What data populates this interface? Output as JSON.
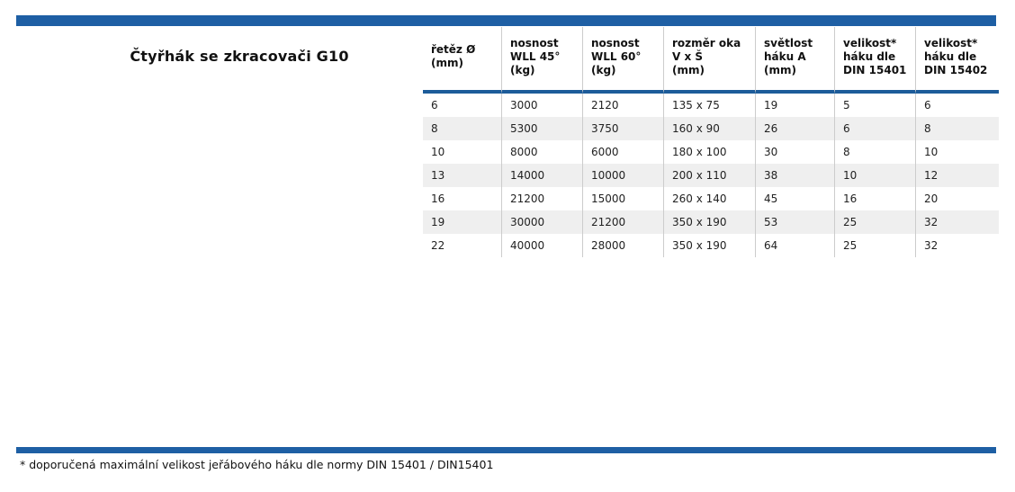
{
  "page": {
    "title": "Čtyřhák se zkracovači G10",
    "footnote": "* doporučená maximální velikost jeřábového háku dle normy DIN 15401 / DIN15401"
  },
  "colors": {
    "accent_bar": "#1e5fa4",
    "header_rule": "#1d5c9a",
    "row_alt": "#efefef",
    "divider": "#cccccc"
  },
  "table": {
    "columns": [
      {
        "key": "chain-diameter",
        "lines": [
          "řetěz Ø",
          "(mm)"
        ],
        "width": 88
      },
      {
        "key": "wll-45",
        "lines": [
          "nosnost",
          "WLL 45°",
          "(kg)"
        ],
        "width": 90
      },
      {
        "key": "wll-60",
        "lines": [
          "nosnost",
          "WLL 60°",
          "(kg)"
        ],
        "width": 90
      },
      {
        "key": "eye-size",
        "lines": [
          "rozměr oka",
          "V x Š",
          "(mm)"
        ],
        "width": 102
      },
      {
        "key": "hook-clearance",
        "lines": [
          "světlost",
          "háku A",
          "(mm)"
        ],
        "width": 88
      },
      {
        "key": "hook-size-din-15401",
        "lines": [
          "velikost*",
          "háku dle",
          "DIN 15401"
        ],
        "width": 90
      },
      {
        "key": "hook-size-din-15402",
        "lines": [
          "velikost*",
          "háku dle",
          "DIN 15402"
        ],
        "width": 92
      }
    ],
    "rows": [
      [
        "6",
        "3000",
        "2120",
        "135 x 75",
        "19",
        "5",
        "6"
      ],
      [
        "8",
        "5300",
        "3750",
        "160 x 90",
        "26",
        "6",
        "8"
      ],
      [
        "10",
        "8000",
        "6000",
        "180 x 100",
        "30",
        "8",
        "10"
      ],
      [
        "13",
        "14000",
        "10000",
        "200 x 110",
        "38",
        "10",
        "12"
      ],
      [
        "16",
        "21200",
        "15000",
        "260 x 140",
        "45",
        "16",
        "20"
      ],
      [
        "19",
        "30000",
        "21200",
        "350 x 190",
        "53",
        "25",
        "32"
      ],
      [
        "22",
        "40000",
        "28000",
        "350 x 190",
        "64",
        "25",
        "32"
      ]
    ]
  },
  "chart_data": {
    "type": "table",
    "title": "Čtyřhák se zkracovači G10",
    "categories": [
      "řetěz Ø (mm)",
      "nosnost WLL 45° (kg)",
      "nosnost WLL 60° (kg)",
      "rozměr oka V x Š (mm)",
      "světlost háku A (mm)",
      "velikost* háku dle DIN 15401",
      "velikost* háku dle DIN 15402"
    ],
    "series": [
      {
        "name": "chain_diameter_mm",
        "values": [
          6,
          8,
          10,
          13,
          16,
          19,
          22
        ]
      },
      {
        "name": "wll_45_kg",
        "values": [
          3000,
          5300,
          8000,
          14000,
          21200,
          30000,
          40000
        ]
      },
      {
        "name": "wll_60_kg",
        "values": [
          2120,
          3750,
          6000,
          10000,
          15000,
          21200,
          28000
        ]
      },
      {
        "name": "eye_size_mm",
        "values": [
          "135 x 75",
          "160 x 90",
          "180 x 100",
          "200 x 110",
          "260 x 140",
          "350 x 190",
          "350 x 190"
        ]
      },
      {
        "name": "hook_clearance_a_mm",
        "values": [
          19,
          26,
          30,
          38,
          45,
          53,
          64
        ]
      },
      {
        "name": "hook_size_din_15401",
        "values": [
          5,
          6,
          8,
          10,
          16,
          25,
          25
        ]
      },
      {
        "name": "hook_size_din_15402",
        "values": [
          6,
          8,
          10,
          12,
          20,
          32,
          32
        ]
      }
    ]
  }
}
